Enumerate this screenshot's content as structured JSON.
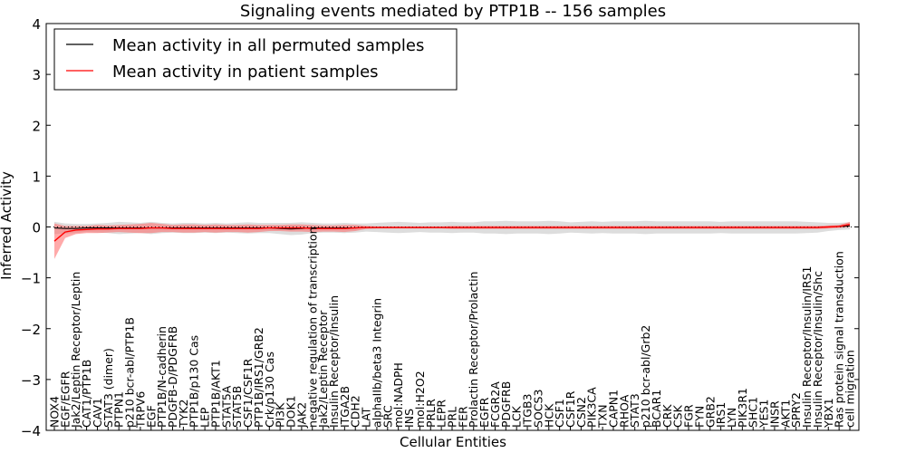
{
  "chart_data": {
    "type": "line",
    "title": "Signaling events mediated by PTP1B -- 156 samples",
    "xlabel": "Cellular Entities",
    "ylabel": "Inferred Activity",
    "ylim": [
      -4,
      4
    ],
    "yticks": [
      "−4",
      "−3",
      "−2",
      "−1",
      "0",
      "1",
      "2",
      "3",
      "4"
    ],
    "legend": {
      "location": "top-left",
      "entries": [
        {
          "label": "Mean activity in all permuted samples",
          "color": "#000000"
        },
        {
          "label": "Mean activity in patient samples",
          "color": "#ff0000"
        }
      ]
    },
    "categories": [
      "NOX4",
      "EGF/EGFR",
      "Jak2/Leptin Receptor/Leptin",
      "CAT1/PTP1B",
      "CAV1",
      "STAT3 (dimer)",
      "PTPN1",
      "p210 bcr-abl/PTP1B",
      "TRPV6",
      "EGF",
      "PTP1B/N-cadherin",
      "PDGFB-D/PDGFRB",
      "TYK2",
      "PTP1B/p130 Cas",
      "LEP",
      "PTP1B/AKT1",
      "STAT5A",
      "STAT5B",
      "CSF1/CSF1R",
      "PTP1B/IRS1/GRB2",
      "Crk/p130 Cas",
      "PI3K",
      "DOK1",
      "JAK2",
      "negative regulation of transcription",
      "Jak2/Leptin Receptor",
      "Insulin Receptor/Insulin",
      "ITGA2B",
      "CDH2",
      "LAT",
      "alphaIIb/beta3 Integrin",
      "SRC",
      "mol:NADPH",
      "INS",
      "mol:H2O2",
      "PRLR",
      "LEPR",
      "PRL",
      "FER",
      "Prolactin Receptor/Prolactin",
      "EGFR",
      "FCGR2A",
      "PDGFRB",
      "LCK",
      "ITGB3",
      "SOCS3",
      "HCK",
      "CSF1",
      "CSF1R",
      "CSN2",
      "PIK3CA",
      "TXN",
      "CAPN1",
      "RHOA",
      "STAT3",
      "p210 bcr-abl/Grb2",
      "BCAR1",
      "CRK",
      "CSK",
      "FGR",
      "FYN",
      "GRB2",
      "IRS1",
      "LYN",
      "PIK3R1",
      "SHC1",
      "YES1",
      "INSR",
      "AKT1",
      "SPRY2",
      "Insulin Receptor/Insulin/IRS1",
      "Insulin Receptor/Insulin/Shc",
      "YBX1",
      "Ras protein signal transduction",
      "cell migration"
    ],
    "series": [
      {
        "name": "Mean activity in all permuted samples",
        "color": "#000000",
        "values": [
          -0.02,
          -0.03,
          -0.03,
          -0.02,
          -0.02,
          -0.02,
          -0.02,
          -0.02,
          -0.02,
          -0.02,
          -0.02,
          -0.02,
          -0.02,
          -0.02,
          -0.02,
          -0.02,
          -0.02,
          -0.02,
          -0.02,
          -0.02,
          -0.02,
          -0.03,
          -0.04,
          -0.03,
          -0.02,
          -0.02,
          -0.02,
          -0.02,
          -0.02,
          -0.01,
          -0.01,
          -0.01,
          -0.01,
          -0.01,
          -0.01,
          -0.01,
          -0.01,
          -0.01,
          -0.01,
          -0.01,
          -0.01,
          -0.01,
          -0.01,
          -0.01,
          -0.01,
          -0.01,
          -0.01,
          -0.01,
          -0.01,
          -0.01,
          -0.01,
          -0.01,
          -0.01,
          -0.01,
          -0.01,
          -0.01,
          -0.01,
          -0.01,
          -0.01,
          -0.01,
          -0.01,
          -0.01,
          -0.01,
          -0.01,
          -0.01,
          -0.01,
          -0.01,
          -0.01,
          -0.01,
          -0.01,
          -0.01,
          -0.01,
          0.0,
          0.01,
          0.02
        ],
        "band": [
          0.12,
          0.1,
          0.09,
          0.08,
          0.09,
          0.1,
          0.12,
          0.11,
          0.1,
          0.12,
          0.1,
          0.09,
          0.1,
          0.1,
          0.09,
          0.1,
          0.09,
          0.1,
          0.11,
          0.1,
          0.1,
          0.11,
          0.12,
          0.12,
          0.1,
          0.09,
          0.09,
          0.1,
          0.09,
          0.08,
          0.09,
          0.1,
          0.11,
          0.1,
          0.09,
          0.1,
          0.1,
          0.11,
          0.1,
          0.1,
          0.12,
          0.12,
          0.13,
          0.12,
          0.12,
          0.12,
          0.13,
          0.12,
          0.1,
          0.11,
          0.12,
          0.11,
          0.12,
          0.12,
          0.12,
          0.13,
          0.12,
          0.12,
          0.12,
          0.12,
          0.12,
          0.12,
          0.11,
          0.12,
          0.12,
          0.12,
          0.12,
          0.12,
          0.12,
          0.12,
          0.11,
          0.1,
          0.08,
          0.07,
          0.07
        ]
      },
      {
        "name": "Mean activity in patient samples",
        "color": "#ff0000",
        "values": [
          -0.28,
          -0.1,
          -0.06,
          -0.05,
          -0.04,
          -0.04,
          -0.03,
          -0.03,
          -0.03,
          -0.02,
          -0.02,
          -0.03,
          -0.03,
          -0.03,
          -0.03,
          -0.03,
          -0.03,
          -0.03,
          -0.03,
          -0.03,
          -0.02,
          -0.02,
          -0.02,
          -0.02,
          -0.03,
          -0.03,
          -0.03,
          -0.03,
          -0.02,
          -0.01,
          -0.01,
          -0.01,
          -0.01,
          -0.01,
          -0.01,
          -0.01,
          -0.01,
          -0.01,
          -0.01,
          -0.01,
          -0.01,
          -0.01,
          -0.01,
          -0.01,
          -0.01,
          -0.01,
          -0.01,
          -0.01,
          -0.01,
          -0.01,
          -0.01,
          -0.01,
          -0.01,
          -0.01,
          -0.01,
          -0.01,
          -0.01,
          -0.01,
          -0.01,
          -0.01,
          -0.01,
          -0.01,
          -0.01,
          -0.01,
          -0.01,
          -0.01,
          -0.01,
          -0.01,
          -0.01,
          -0.01,
          -0.01,
          -0.01,
          0.0,
          0.01,
          0.05
        ],
        "band": [
          0.35,
          0.12,
          0.08,
          0.07,
          0.08,
          0.07,
          0.07,
          0.08,
          0.09,
          0.1,
          0.08,
          0.07,
          0.08,
          0.08,
          0.07,
          0.08,
          0.07,
          0.07,
          0.08,
          0.07,
          0.06,
          0.06,
          0.07,
          0.07,
          0.07,
          0.06,
          0.06,
          0.07,
          0.06,
          0.03,
          0.02,
          0.02,
          0.02,
          0.02,
          0.02,
          0.02,
          0.02,
          0.03,
          0.03,
          0.03,
          0.03,
          0.03,
          0.03,
          0.03,
          0.03,
          0.03,
          0.03,
          0.03,
          0.03,
          0.03,
          0.03,
          0.03,
          0.03,
          0.03,
          0.03,
          0.03,
          0.03,
          0.03,
          0.03,
          0.03,
          0.03,
          0.03,
          0.03,
          0.03,
          0.03,
          0.03,
          0.03,
          0.03,
          0.03,
          0.03,
          0.03,
          0.03,
          0.03,
          0.03,
          0.05
        ]
      }
    ],
    "baseline": {
      "style": "dotted",
      "value": 0
    }
  }
}
